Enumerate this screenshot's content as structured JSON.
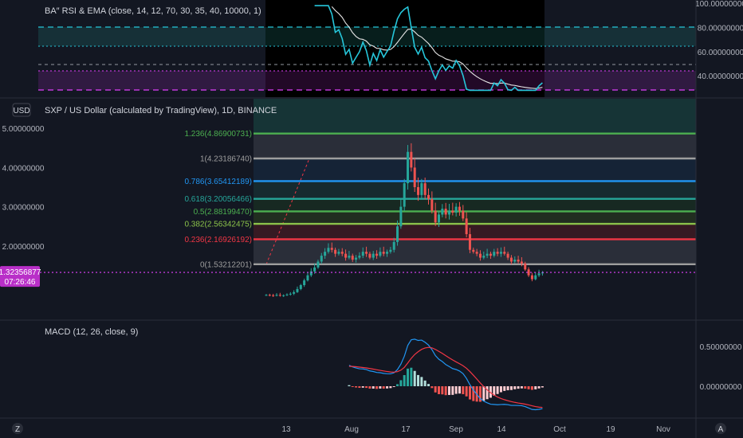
{
  "rsi_pane": {
    "indicator_label": "BA″ RSI & EMA (close, 14, 12, 70, 30, 35, 40, 10000, 1)",
    "price_axis": [
      {
        "label": "100.00000000",
        "value": 100
      },
      {
        "label": "80.00000000",
        "value": 80
      },
      {
        "label": "60.00000000",
        "value": 60
      },
      {
        "label": "40.00000000",
        "value": 40
      }
    ]
  },
  "main_pane": {
    "currency_button": "USD",
    "title": "SXP / US Dollar (calculated by TradingView), 1D, BINANCE",
    "price_axis": [
      {
        "label": "5.00000000",
        "value": 5
      },
      {
        "label": "4.00000000",
        "value": 4
      },
      {
        "label": "3.00000000",
        "value": 3
      },
      {
        "label": "2.00000000",
        "value": 2
      }
    ],
    "last_price": "1.32356877",
    "countdown": "07:26:46",
    "fib_levels": [
      {
        "label": "1.236(4.86900731)",
        "value": 4.86900731,
        "color": "#4caf50"
      },
      {
        "label": "1(4.23186740)",
        "value": 4.2318674,
        "color": "#9e9e9e"
      },
      {
        "label": "0.786(3.65412189)",
        "value": 3.65412189,
        "color": "#2196f3"
      },
      {
        "label": "0.618(3.20056466)",
        "value": 3.20056466,
        "color": "#26a69a"
      },
      {
        "label": "0.5(2.88199470)",
        "value": 2.8819947,
        "color": "#4caf50"
      },
      {
        "label": "0.382(2.56342475)",
        "value": 2.56342475,
        "color": "#8bc34a"
      },
      {
        "label": "0.236(2.16926192)",
        "value": 2.16926192,
        "color": "#f23645"
      },
      {
        "label": "0(1.53212201)",
        "value": 1.53212201,
        "color": "#9e9e9e"
      }
    ]
  },
  "macd_pane": {
    "indicator_label": "MACD (12, 26, close, 9)",
    "price_axis": [
      {
        "label": "0.50000000",
        "value": 0.5
      },
      {
        "label": "0.00000000",
        "value": 0
      }
    ]
  },
  "time_axis": [
    "13",
    "Aug",
    "17",
    "Sep",
    "14",
    "Oct",
    "19",
    "Nov"
  ],
  "icons": {
    "bottom_left": "tradingview-logo-icon",
    "bottom_right": "auto-scale-icon"
  },
  "chart_data": {
    "type": "line",
    "title": "SXP / US Dollar (calculated by TradingView), 1D, BINANCE",
    "x": [
      "2020-07-07",
      "2020-07-08",
      "2020-07-09",
      "2020-07-10",
      "2020-07-11",
      "2020-07-12",
      "2020-07-13",
      "2020-07-14",
      "2020-07-15",
      "2020-07-16",
      "2020-07-17",
      "2020-07-18",
      "2020-07-19",
      "2020-07-20",
      "2020-07-21",
      "2020-07-22",
      "2020-07-23",
      "2020-07-24",
      "2020-07-25",
      "2020-07-26",
      "2020-07-27",
      "2020-07-28",
      "2020-07-29",
      "2020-07-30",
      "2020-07-31",
      "2020-08-01",
      "2020-08-02",
      "2020-08-03",
      "2020-08-04",
      "2020-08-05",
      "2020-08-06",
      "2020-08-07",
      "2020-08-08",
      "2020-08-09",
      "2020-08-10",
      "2020-08-11",
      "2020-08-12",
      "2020-08-13",
      "2020-08-14",
      "2020-08-15",
      "2020-08-16",
      "2020-08-17",
      "2020-08-18",
      "2020-08-19",
      "2020-08-20",
      "2020-08-21",
      "2020-08-22",
      "2020-08-23",
      "2020-08-24",
      "2020-08-25",
      "2020-08-26",
      "2020-08-27",
      "2020-08-28",
      "2020-08-29",
      "2020-08-30",
      "2020-08-31",
      "2020-09-01",
      "2020-09-02",
      "2020-09-03",
      "2020-09-04",
      "2020-09-05",
      "2020-09-06",
      "2020-09-07",
      "2020-09-08",
      "2020-09-09",
      "2020-09-10",
      "2020-09-11",
      "2020-09-12",
      "2020-09-13",
      "2020-09-14",
      "2020-09-15",
      "2020-09-16",
      "2020-09-17",
      "2020-09-18",
      "2020-09-19",
      "2020-09-20",
      "2020-09-21",
      "2020-09-22",
      "2020-09-23",
      "2020-09-24",
      "2020-09-25"
    ],
    "series": [
      {
        "values": [
          0.75,
          0.74,
          0.73,
          0.75,
          0.73,
          0.74,
          0.76,
          0.78,
          0.82,
          0.9,
          1.0,
          1.12,
          1.25,
          1.35,
          1.45,
          1.6,
          1.75,
          1.85,
          1.95,
          1.9,
          1.8,
          1.85,
          1.8,
          1.7,
          1.75,
          1.65,
          1.7,
          1.75,
          1.85,
          1.8,
          1.7,
          1.8,
          1.75,
          1.85,
          1.8,
          1.85,
          1.9,
          2.1,
          2.5,
          3.0,
          3.6,
          4.4,
          4.0,
          3.5,
          3.3,
          3.6,
          3.3,
          3.2,
          2.9,
          2.6,
          2.8,
          2.95,
          2.8,
          2.9,
          2.85,
          3.0,
          2.9,
          2.7,
          2.3,
          1.9,
          1.85,
          1.8,
          1.7,
          1.75,
          1.8,
          1.75,
          1.85,
          1.8,
          1.85,
          1.8,
          1.7,
          1.6,
          1.65,
          1.6,
          1.55,
          1.4,
          1.25,
          1.15,
          1.25,
          1.3,
          1.32
        ]
      }
    ],
    "ylim": [
      0.4,
      5.6
    ],
    "grid": false,
    "fib_retracement": [
      1.53212201,
      2.16926192,
      2.56342475,
      2.8819947,
      3.20056466,
      3.65412189,
      4.2318674,
      4.86900731
    ],
    "rsi": {
      "ylim": [
        25,
        105
      ],
      "bands": [
        80,
        66,
        50,
        45,
        30
      ]
    },
    "macd": {
      "ylim": [
        -0.12,
        0.72
      ]
    }
  }
}
